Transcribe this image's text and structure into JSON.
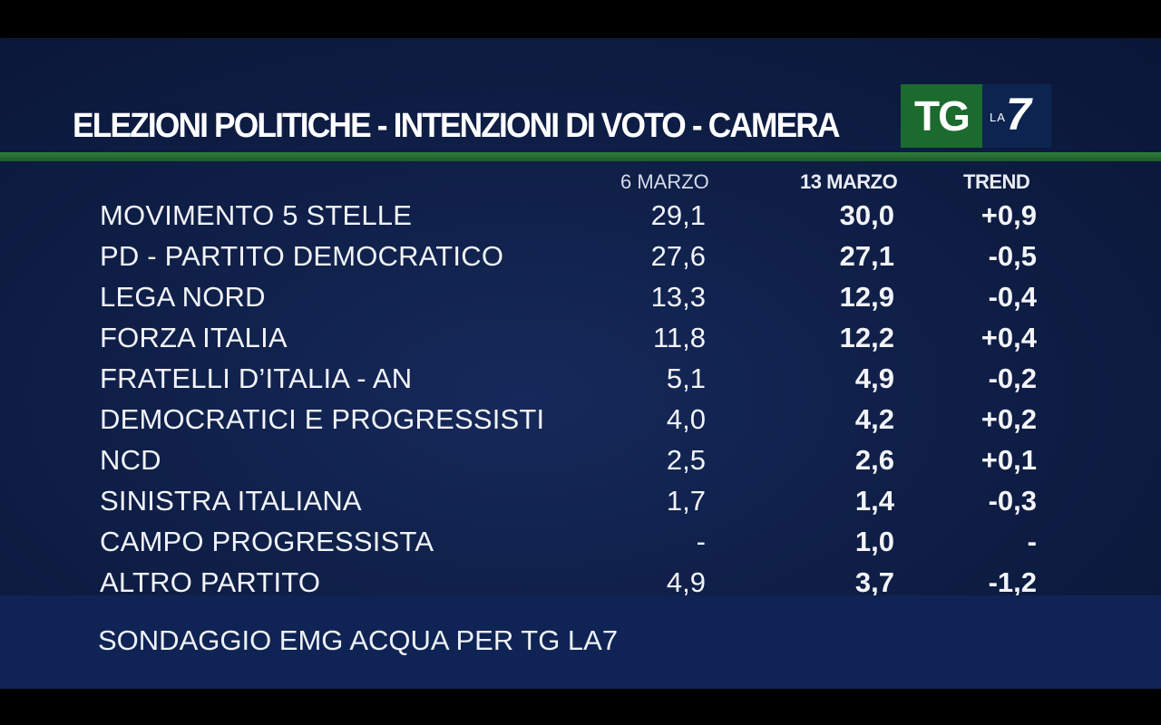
{
  "title": "ELEZIONI POLITICHE - INTENZIONI DI VOTO - CAMERA",
  "logo": {
    "tg": "TG",
    "la": "LA",
    "seven": "7"
  },
  "headers": {
    "prev": "6 MARZO",
    "cur": "13 MARZO",
    "trend": "TREND"
  },
  "footer": "SONDAGGIO EMG ACQUA PER TG LA7",
  "colors": {
    "background": "#0f1f48",
    "accent_green": "#1c6b2e",
    "footer_bar": "#0f2454"
  },
  "chart_data": {
    "type": "table",
    "columns": [
      "",
      "6 MARZO",
      "13 MARZO",
      "TREND"
    ],
    "rows": [
      {
        "party": "MOVIMENTO 5 STELLE",
        "prev": "29,1",
        "cur": "30,0",
        "trend": "+0,9"
      },
      {
        "party": "PD - PARTITO DEMOCRATICO",
        "prev": "27,6",
        "cur": "27,1",
        "trend": "-0,5"
      },
      {
        "party": "LEGA NORD",
        "prev": "13,3",
        "cur": "12,9",
        "trend": "-0,4"
      },
      {
        "party": "FORZA ITALIA",
        "prev": "11,8",
        "cur": "12,2",
        "trend": "+0,4"
      },
      {
        "party": "FRATELLI D’ITALIA - AN",
        "prev": "5,1",
        "cur": "4,9",
        "trend": "-0,2"
      },
      {
        "party": "DEMOCRATICI E PROGRESSISTI",
        "prev": "4,0",
        "cur": "4,2",
        "trend": "+0,2"
      },
      {
        "party": "NCD",
        "prev": "2,5",
        "cur": "2,6",
        "trend": "+0,1"
      },
      {
        "party": "SINISTRA ITALIANA",
        "prev": "1,7",
        "cur": "1,4",
        "trend": "-0,3"
      },
      {
        "party": "CAMPO PROGRESSISTA",
        "prev": "-",
        "cur": "1,0",
        "trend": "-"
      },
      {
        "party": "ALTRO PARTITO",
        "prev": "4,9",
        "cur": "3,7",
        "trend": "-1,2"
      }
    ]
  }
}
